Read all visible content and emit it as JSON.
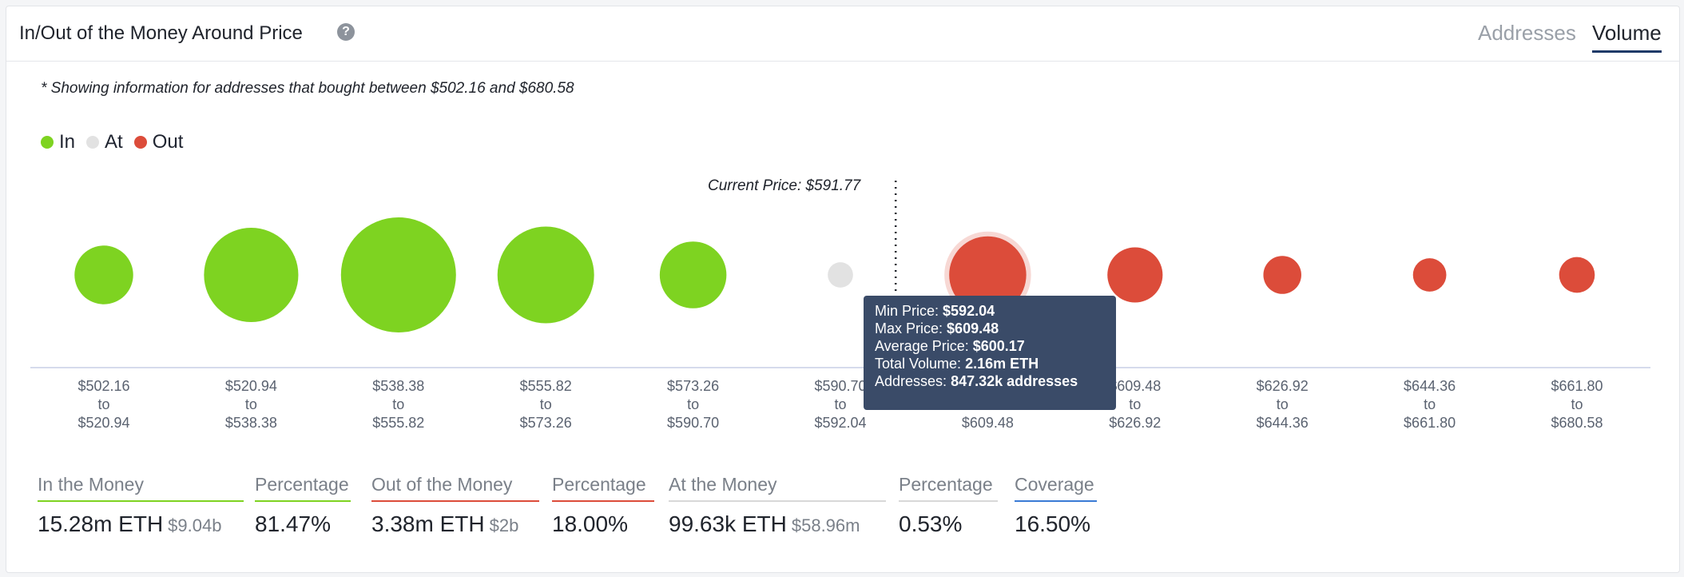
{
  "header": {
    "title": "In/Out of the Money Around Price",
    "help_icon": "?",
    "tabs": [
      {
        "label": "Addresses",
        "active": false
      },
      {
        "label": "Volume",
        "active": true
      }
    ]
  },
  "note": "* Showing information for addresses that bought between $502.16 and $680.58",
  "legend": [
    {
      "label": "In",
      "color": "#7ed321"
    },
    {
      "label": "At",
      "color": "#e2e2e2"
    },
    {
      "label": "Out",
      "color": "#dc4c3a"
    }
  ],
  "chart_data": {
    "type": "scatter",
    "current_price_label": "Current Price: $591.77",
    "current_price": 591.77,
    "buckets": [
      {
        "from": "$502.16",
        "to": "$520.94",
        "status": "in",
        "size": 0.51
      },
      {
        "from": "$520.94",
        "to": "$538.38",
        "status": "in",
        "size": 0.82
      },
      {
        "from": "$538.38",
        "to": "$555.82",
        "status": "in",
        "size": 1.0
      },
      {
        "from": "$555.82",
        "to": "$573.26",
        "status": "in",
        "size": 0.84
      },
      {
        "from": "$573.26",
        "to": "$590.70",
        "status": "in",
        "size": 0.58
      },
      {
        "from": "$590.70",
        "to": "$592.04",
        "status": "at",
        "size": 0.22
      },
      {
        "from": "$592.04",
        "to": "$609.48",
        "status": "out",
        "size": 0.67,
        "highlight": true
      },
      {
        "from": "$609.48",
        "to": "$626.92",
        "status": "out",
        "size": 0.48
      },
      {
        "from": "$626.92",
        "to": "$644.36",
        "status": "out",
        "size": 0.33
      },
      {
        "from": "$644.36",
        "to": "$661.80",
        "status": "out",
        "size": 0.29
      },
      {
        "from": "$661.80",
        "to": "$680.58",
        "status": "out",
        "size": 0.31
      }
    ],
    "range_connector": "to"
  },
  "tooltip": {
    "min_price_label": "Min Price:",
    "min_price": "$592.04",
    "max_price_label": "Max Price:",
    "max_price": "$609.48",
    "avg_price_label": "Average Price:",
    "avg_price": "$600.17",
    "volume_label": "Total Volume:",
    "volume": "2.16m ETH",
    "addresses_label": "Addresses:",
    "addresses": "847.32k addresses"
  },
  "stats": [
    {
      "label": "In the Money",
      "value": "15.28m ETH",
      "sub": "$9.04b",
      "color": "#7ed321"
    },
    {
      "label": "Percentage",
      "value": "81.47%",
      "sub": "",
      "color": "#7ed321"
    },
    {
      "label": "Out of the Money",
      "value": "3.38m ETH",
      "sub": "$2b",
      "color": "#dc4c3a"
    },
    {
      "label": "Percentage",
      "value": "18.00%",
      "sub": "",
      "color": "#dc4c3a"
    },
    {
      "label": "At the Money",
      "value": "99.63k ETH",
      "sub": "$58.96m",
      "color": "#d8d8d8"
    },
    {
      "label": "Percentage",
      "value": "0.53%",
      "sub": "",
      "color": "#d8d8d8"
    },
    {
      "label": "Coverage",
      "value": "16.50%",
      "sub": "",
      "color": "#3a7bd5"
    }
  ]
}
